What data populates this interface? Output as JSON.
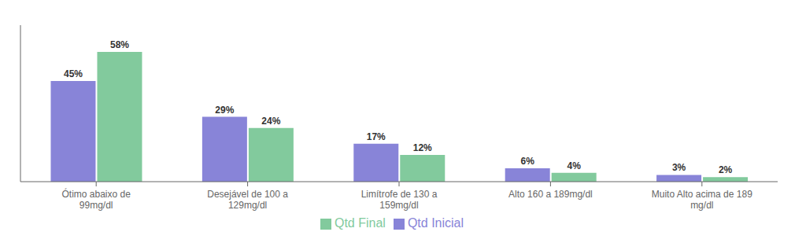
{
  "chart_data": {
    "type": "bar",
    "categories": [
      "Ótimo abaixo de\n99mg/dl",
      "Desejável de 100 a\n129mg/dl",
      "Limítrofe de 130 a\n159mg/dl",
      "Alto 160 a 189mg/dl",
      "Muito Alto acima de 189\nmg/dl"
    ],
    "series": [
      {
        "name": "Qtd Inicial",
        "color": "#8884d8",
        "values": [
          45,
          29,
          17,
          6,
          3
        ],
        "value_labels": [
          "45%",
          "29%",
          "17%",
          "6%",
          "3%"
        ]
      },
      {
        "name": "Qtd Final",
        "color": "#82ca9d",
        "values": [
          58,
          24,
          12,
          4,
          2
        ],
        "value_labels": [
          "58%",
          "24%",
          "12%",
          "4%",
          "2%"
        ]
      }
    ],
    "ylim": [
      0,
      70
    ],
    "data_labels": true,
    "legend": "bottom",
    "tick_labels": "x"
  }
}
